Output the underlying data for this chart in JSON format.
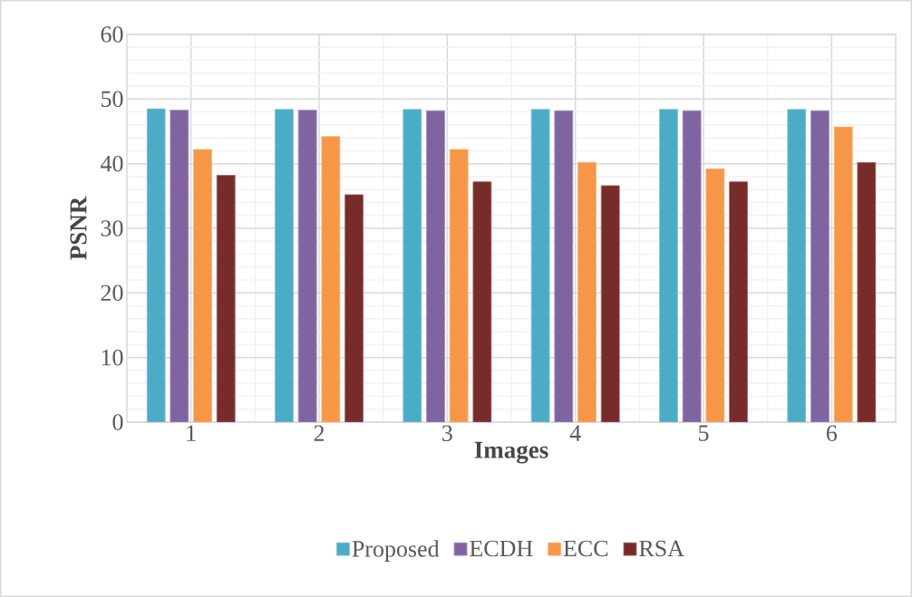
{
  "chart_data": {
    "type": "bar",
    "xlabel": "Images",
    "ylabel": "PSNR",
    "categories": [
      "1",
      "2",
      "3",
      "4",
      "5",
      "6"
    ],
    "series": [
      {
        "name": "Proposed",
        "color": "#4bacc6",
        "values": [
          48.5,
          48.4,
          48.4,
          48.4,
          48.4,
          48.4
        ]
      },
      {
        "name": "ECDH",
        "color": "#8064a2",
        "values": [
          48.3,
          48.3,
          48.2,
          48.2,
          48.2,
          48.2
        ]
      },
      {
        "name": "ECC",
        "color": "#f79646",
        "values": [
          42.2,
          44.2,
          42.2,
          40.2,
          39.2,
          45.7
        ]
      },
      {
        "name": "RSA",
        "color": "#772c2a",
        "values": [
          38.2,
          35.2,
          37.2,
          36.6,
          37.2,
          40.2
        ]
      }
    ],
    "ylim": [
      0,
      60
    ],
    "yticks": [
      0,
      10,
      20,
      30,
      40,
      50,
      60
    ],
    "grid": true,
    "legend": "bottom"
  }
}
